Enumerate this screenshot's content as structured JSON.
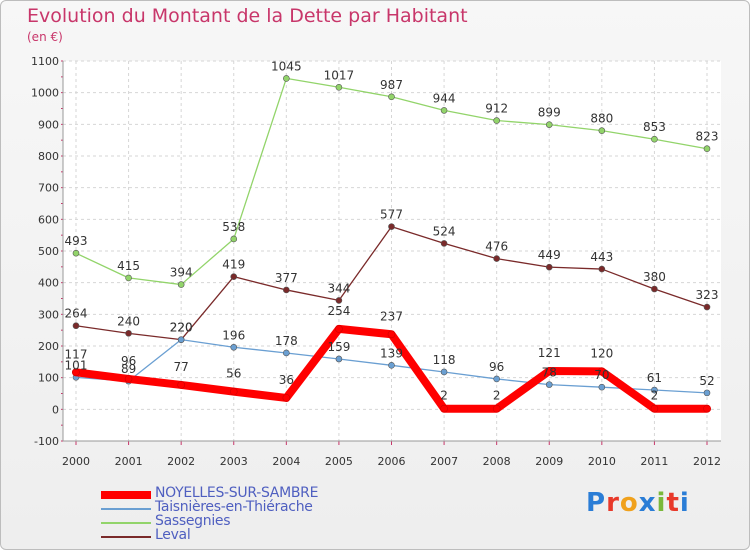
{
  "title": "Evolution du Montant de la Dette par Habitant",
  "unit": "(en €)",
  "logo": {
    "text": "Proxiti",
    "colors": [
      "#2a7dd6",
      "#e8392a",
      "#f0a11c",
      "#2a7dd6",
      "#7ab83a",
      "#e8392a",
      "#2a7dd6"
    ]
  },
  "chart_data": {
    "type": "line",
    "title": "Evolution du Montant de la Dette par Habitant",
    "ylabel": "(en €)",
    "x": [
      "2000",
      "2001",
      "2002",
      "2003",
      "2004",
      "2005",
      "2006",
      "2007",
      "2008",
      "2009",
      "2010",
      "2011",
      "2012"
    ],
    "ylim": [
      -100,
      1100
    ],
    "yticks": [
      "-100",
      "0",
      "100",
      "200",
      "300",
      "400",
      "500",
      "600",
      "700",
      "800",
      "900",
      "1000",
      "1100"
    ],
    "grid": true,
    "legend": "bottom-left",
    "series": [
      {
        "name": "NOYELLES-SUR-SAMBRE",
        "color": "#ff0000",
        "values": [
          117,
          96,
          77,
          56,
          36,
          254,
          237,
          2,
          2,
          121,
          120,
          2,
          2
        ],
        "labels": [
          "117",
          "96",
          "77",
          "56",
          "36",
          "254",
          "237",
          "2",
          "2",
          "121",
          "120",
          "2",
          ""
        ]
      },
      {
        "name": "Taisnières-en-Thiérache",
        "color": "#6a9fd2",
        "values": [
          101,
          89,
          220,
          196,
          178,
          159,
          139,
          118,
          96,
          78,
          70,
          61,
          52
        ],
        "labels": [
          "101",
          "89",
          "220",
          "196",
          "178",
          "159",
          "139",
          "118",
          "96",
          "78",
          "70",
          "61",
          "52"
        ]
      },
      {
        "name": "Sassegnies",
        "color": "#92d46a",
        "values": [
          493,
          415,
          394,
          538,
          1045,
          1017,
          987,
          944,
          912,
          899,
          880,
          853,
          823
        ],
        "labels": [
          "493",
          "415",
          "394",
          "538",
          "1045",
          "1017",
          "987",
          "944",
          "912",
          "899",
          "880",
          "853",
          "823"
        ]
      },
      {
        "name": "Leval",
        "color": "#7a2a2a",
        "values": [
          264,
          240,
          220,
          419,
          377,
          344,
          577,
          524,
          476,
          449,
          443,
          380,
          323
        ],
        "labels": [
          "264",
          "240",
          "220",
          "419",
          "377",
          "344",
          "577",
          "524",
          "476",
          "449",
          "443",
          "380",
          "323"
        ]
      }
    ]
  }
}
